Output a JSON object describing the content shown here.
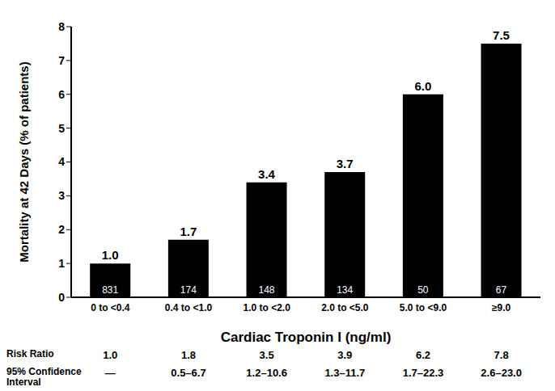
{
  "chart_data": {
    "type": "bar",
    "y_label": "Mortality at 42 Days (% of patients)",
    "x_label": "Cardiac Troponin I (ng/ml)",
    "categories": [
      "0 to <0.4",
      "0.4 to <1.0",
      "1.0 to <2.0",
      "2.0 to <5.0",
      "5.0 to <9.0",
      "≥9.0"
    ],
    "values": [
      1.0,
      1.7,
      3.4,
      3.7,
      6.0,
      7.5
    ],
    "value_labels": [
      "1.0",
      "1.7",
      "3.4",
      "3.7",
      "6.0",
      "7.5"
    ],
    "patients": [
      831,
      174,
      148,
      134,
      50,
      67
    ],
    "color": "#000000",
    "ylim": [
      0,
      8
    ],
    "yticks": [
      0,
      1,
      2,
      3,
      4,
      5,
      6,
      7,
      8
    ],
    "grid": false,
    "data_labels": true,
    "table": {
      "rows": [
        {
          "label": "Risk Ratio",
          "cells": [
            "1.0",
            "1.8",
            "3.5",
            "3.9",
            "6.2",
            "7.8"
          ]
        },
        {
          "label": "95% Confidence Interval",
          "cells": [
            "—",
            "0.5–6.7",
            "1.2–10.6",
            "1.3–11.7",
            "1.7–22.3",
            "2.6–23.0"
          ]
        }
      ]
    }
  }
}
